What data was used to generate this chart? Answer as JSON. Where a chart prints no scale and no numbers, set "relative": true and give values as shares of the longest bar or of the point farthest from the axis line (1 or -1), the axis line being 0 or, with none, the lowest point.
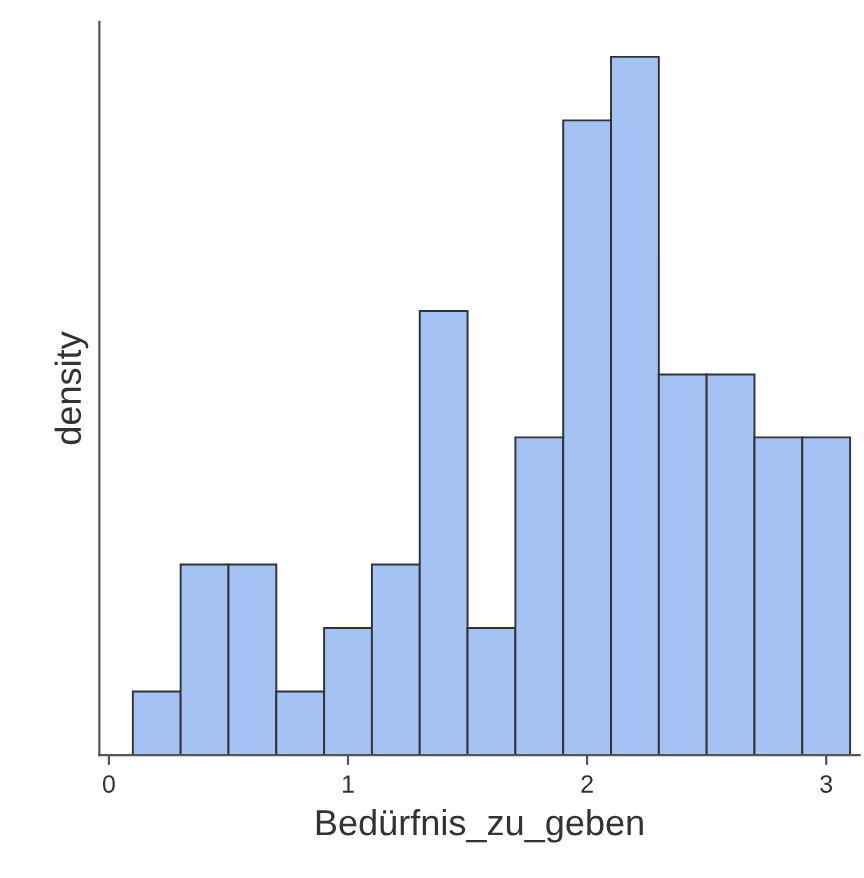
{
  "chart_data": {
    "type": "bar",
    "xlabel": "Bedürfnis_zu_geben",
    "ylabel": "density",
    "relative": true,
    "color": "#a4c2f4",
    "x": [
      0.2,
      0.4,
      0.6,
      0.8,
      1.0,
      1.2,
      1.4,
      1.6,
      1.8,
      2.0,
      2.2,
      2.4,
      2.6,
      2.8,
      3.0
    ],
    "values": [
      0.091,
      0.273,
      0.273,
      0.091,
      0.182,
      0.273,
      0.636,
      0.182,
      0.455,
      0.909,
      1.0,
      0.545,
      0.545,
      0.455,
      0.455
    ],
    "xlim": [
      -0.04,
      3.14
    ],
    "xticks": [
      0,
      1,
      2,
      3
    ]
  }
}
